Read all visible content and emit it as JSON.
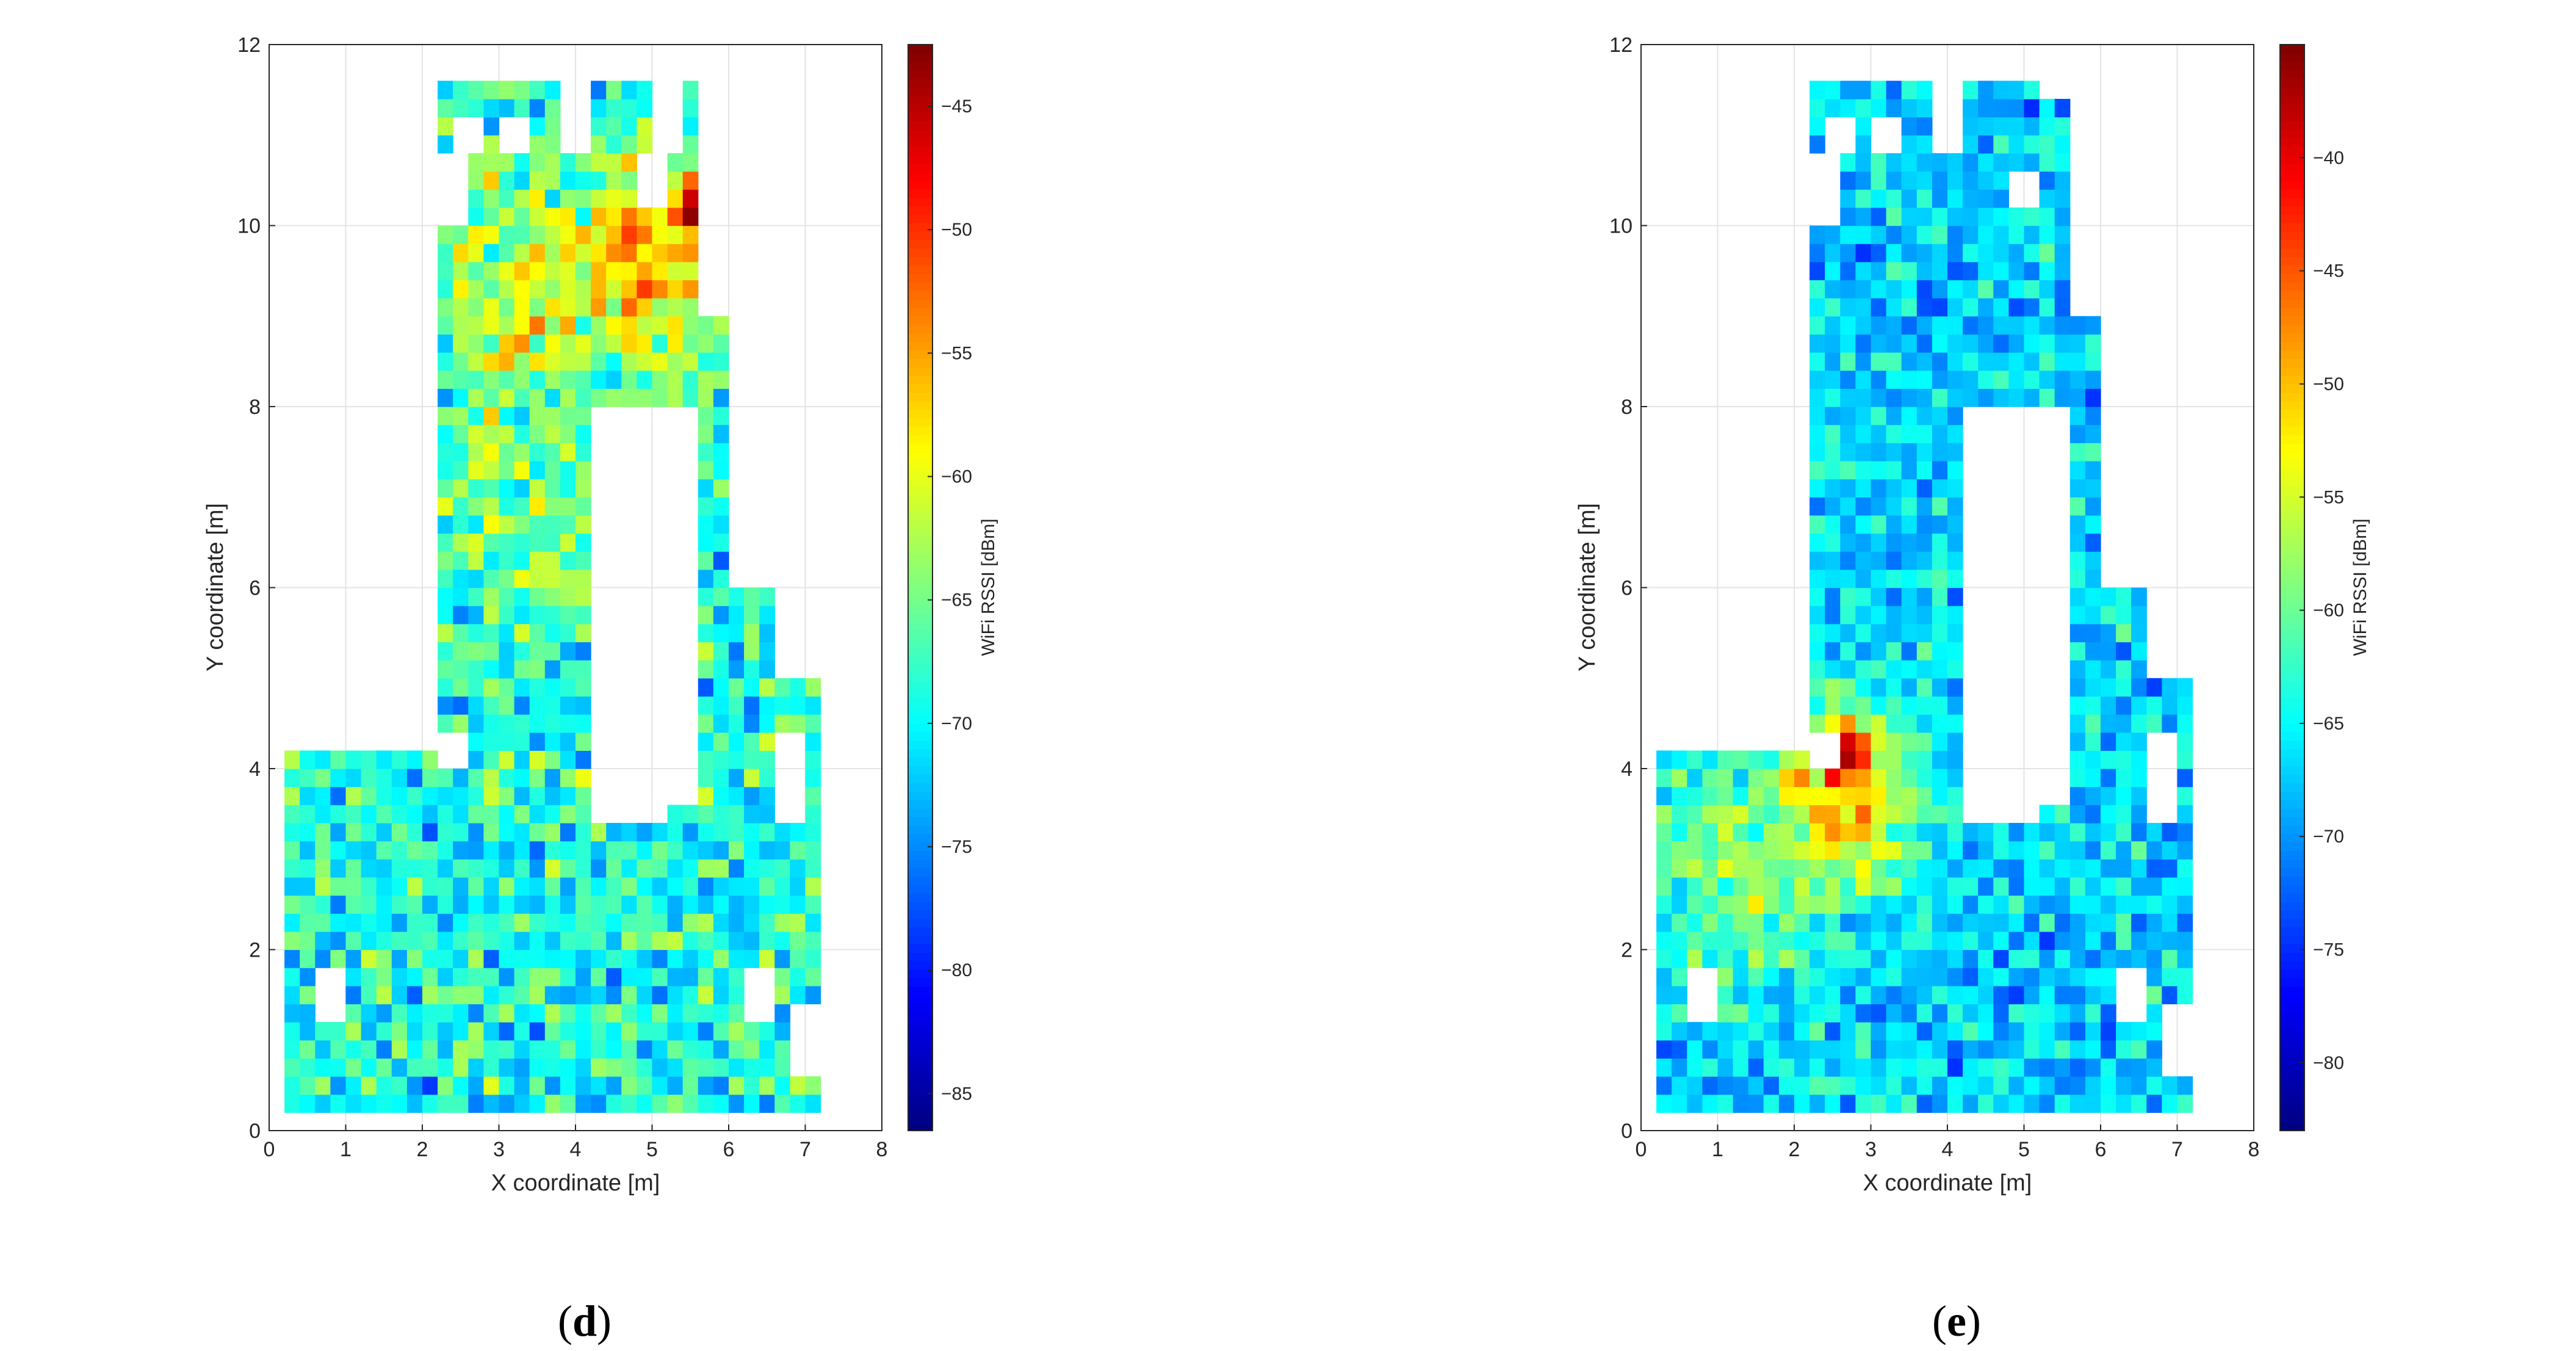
{
  "chart_data": [
    {
      "type": "heatmap",
      "panel_label": {
        "open": "(",
        "letter": "d",
        "close": ")"
      },
      "xlabel": "X coordinate [m]",
      "ylabel": "Y coordinate [m]",
      "xlim": [
        0,
        8
      ],
      "ylim": [
        0,
        12
      ],
      "xticks": [
        "0",
        "1",
        "2",
        "3",
        "4",
        "5",
        "6",
        "7",
        "8"
      ],
      "yticks": [
        "0",
        "2",
        "4",
        "6",
        "8",
        "10",
        "12"
      ],
      "grid": true,
      "colormap": "jet",
      "colorbar": {
        "label": "WiFi RSSI [dBm]",
        "range": [
          -86.5,
          -42.5
        ],
        "ticks": [
          "-85",
          "-80",
          "-75",
          "-70",
          "-65",
          "-60",
          "-55",
          "-50",
          "-45"
        ]
      },
      "cell_size_m": 0.2,
      "data_area": {
        "rects": [
          [
            0.2,
            0.2,
            7.2,
            4.2
          ],
          [
            2.2,
            0.2,
            7.2,
            4.4
          ],
          [
            2.2,
            4.4,
            5.7,
            11.6
          ],
          [
            5.7,
            4.4,
            6.0,
            9.0
          ],
          [
            6.0,
            4.4,
            6.6,
            6.0
          ],
          [
            6.6,
            4.4,
            7.2,
            5.0
          ]
        ],
        "holes": [
          [
            0.6,
            1.2,
            1.0,
            1.8
          ],
          [
            6.2,
            1.2,
            6.6,
            1.8
          ],
          [
            6.8,
            0.6,
            7.2,
            1.4
          ],
          [
            6.6,
            3.4,
            7.0,
            4.4
          ],
          [
            2.2,
            4.0,
            2.6,
            4.4
          ],
          [
            4.2,
            3.4,
            5.2,
            8.0
          ],
          [
            5.2,
            3.6,
            5.6,
            8.0
          ],
          [
            2.2,
            10.0,
            2.6,
            10.8
          ],
          [
            2.4,
            10.8,
            2.8,
            11.2
          ],
          [
            3.0,
            10.8,
            3.4,
            11.2
          ],
          [
            3.8,
            10.8,
            4.2,
            11.6
          ],
          [
            4.8,
            10.2,
            5.2,
            10.8
          ],
          [
            5.0,
            10.8,
            5.4,
            11.6
          ]
        ]
      },
      "rssi_model": {
        "base": -69.0,
        "noise": 5.0,
        "min": -86.0,
        "max": -43.0,
        "hotspots": [
          {
            "x": 5.6,
            "y": 10.2,
            "peak": -43,
            "radius": 0.7
          },
          {
            "x": 4.9,
            "y": 9.6,
            "peak": -55,
            "radius": 1.9
          },
          {
            "x": 3.4,
            "y": 9.3,
            "peak": -60,
            "radius": 2.3
          },
          {
            "x": 3.6,
            "y": 7.0,
            "peak": -64,
            "radius": 3.0
          }
        ],
        "seed": 17
      }
    },
    {
      "type": "heatmap",
      "panel_label": {
        "open": "(",
        "letter": "e",
        "close": ")"
      },
      "xlabel": "X coordinate [m]",
      "ylabel": "Y coordinate [m]",
      "xlim": [
        0,
        8
      ],
      "ylim": [
        0,
        12
      ],
      "xticks": [
        "0",
        "1",
        "2",
        "3",
        "4",
        "5",
        "6",
        "7",
        "8"
      ],
      "yticks": [
        "0",
        "2",
        "4",
        "6",
        "8",
        "10",
        "12"
      ],
      "grid": true,
      "colormap": "jet",
      "colorbar": {
        "label": "WiFi RSSI [dBm]",
        "range": [
          -83,
          -35
        ],
        "ticks": [
          "-80",
          "-75",
          "-70",
          "-65",
          "-60",
          "-55",
          "-50",
          "-45",
          "-40"
        ]
      },
      "cell_size_m": 0.2,
      "data_area": {
        "rects": [
          [
            0.2,
            0.2,
            7.2,
            4.2
          ],
          [
            2.2,
            0.2,
            7.2,
            4.4
          ],
          [
            2.2,
            4.4,
            5.7,
            11.6
          ],
          [
            5.7,
            4.4,
            6.0,
            9.0
          ],
          [
            6.0,
            4.4,
            6.6,
            6.0
          ],
          [
            6.6,
            4.4,
            7.2,
            5.0
          ]
        ],
        "holes": [
          [
            0.6,
            1.2,
            1.0,
            1.8
          ],
          [
            6.2,
            1.2,
            6.6,
            1.8
          ],
          [
            6.8,
            0.6,
            7.2,
            1.4
          ],
          [
            6.6,
            3.4,
            7.0,
            4.4
          ],
          [
            2.2,
            4.0,
            2.6,
            4.4
          ],
          [
            4.2,
            3.4,
            5.2,
            8.0
          ],
          [
            5.2,
            3.6,
            5.6,
            8.0
          ],
          [
            2.2,
            10.0,
            2.6,
            10.8
          ],
          [
            2.4,
            10.8,
            2.8,
            11.2
          ],
          [
            3.0,
            10.8,
            3.4,
            11.2
          ],
          [
            3.8,
            10.8,
            4.2,
            11.6
          ],
          [
            5.2,
            11.4,
            5.6,
            11.6
          ],
          [
            4.8,
            10.2,
            5.2,
            10.6
          ]
        ]
      },
      "rssi_model": {
        "base": -67.0,
        "noise": 4.2,
        "min": -83.0,
        "max": -37.0,
        "hotspots": [
          {
            "x": 2.7,
            "y": 4.1,
            "peak": -37,
            "radius": 0.75
          },
          {
            "x": 2.6,
            "y": 3.7,
            "peak": -50,
            "radius": 1.8
          },
          {
            "x": 1.4,
            "y": 3.0,
            "peak": -58,
            "radius": 2.4
          }
        ],
        "seed": 29
      }
    }
  ]
}
